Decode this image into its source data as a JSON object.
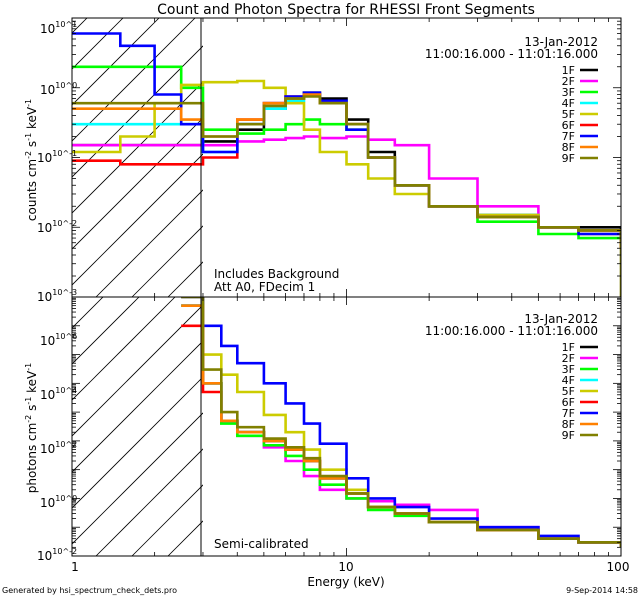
{
  "title": "Count and Photon Spectra for RHESSI Front Segments",
  "footer": {
    "left": "Generated by hsi_spectrum_check_dets.pro",
    "right": "9-Sep-2014 14:58"
  },
  "date_label": "13-Jan-2012",
  "time_range": "11:00:16.000 - 11:01:16.000",
  "series_names": [
    "1F",
    "2F",
    "3F",
    "4F",
    "5F",
    "6F",
    "7F",
    "8F",
    "9F"
  ],
  "series_colors": [
    "#000000",
    "#ff00ff",
    "#00ff00",
    "#00ffff",
    "#cccc00",
    "#ff0000",
    "#0000ff",
    "#ff8000",
    "#808000"
  ],
  "chart_data": [
    {
      "type": "line",
      "panel": "top",
      "xlabel": "",
      "ylabel": "counts cm^-2 s^-1 keV^-1",
      "xscale": "log",
      "yscale": "log",
      "xlim": [
        1,
        100
      ],
      "ylim": [
        0.001,
        10
      ],
      "xtick_labels": [],
      "ytick_labels": [
        "10^1",
        "10^0",
        "10^-1",
        "10^-2",
        "10^-3"
      ],
      "annotations": [
        "Includes Background",
        "Att A0, FDecim 1"
      ],
      "shaded_region": {
        "x_from": 1,
        "x_to": 3,
        "pattern": "hatched"
      },
      "series": [
        {
          "name": "1F",
          "x": [
            1,
            1.5,
            2,
            2.5,
            3,
            4,
            5,
            6,
            7,
            8,
            10,
            12,
            15,
            20,
            30,
            50,
            70,
            100
          ],
          "values": [
            0.15,
            0.15,
            0.15,
            0.15,
            0.17,
            0.25,
            0.5,
            0.7,
            0.85,
            0.7,
            0.35,
            0.12,
            0.04,
            0.02,
            0.015,
            0.01,
            0.01,
            0.005
          ]
        },
        {
          "name": "2F",
          "x": [
            1,
            1.5,
            2,
            2.5,
            3,
            4,
            5,
            6,
            7,
            8,
            10,
            12,
            15,
            20,
            30,
            50,
            70,
            100
          ],
          "values": [
            0.15,
            0.15,
            0.15,
            0.15,
            0.15,
            0.17,
            0.18,
            0.19,
            0.2,
            0.19,
            0.2,
            0.18,
            0.15,
            0.05,
            0.02,
            0.01,
            0.008,
            0.005
          ]
        },
        {
          "name": "3F",
          "x": [
            1,
            1.5,
            2,
            2.5,
            3,
            4,
            5,
            6,
            7,
            8,
            10,
            12,
            15,
            20,
            30,
            50,
            70,
            100
          ],
          "values": [
            2,
            2,
            2,
            1,
            0.25,
            0.22,
            0.25,
            0.3,
            0.35,
            0.3,
            0.25,
            0.1,
            0.04,
            0.02,
            0.012,
            0.008,
            0.007,
            0.005
          ]
        },
        {
          "name": "4F",
          "x": [
            1,
            1.5,
            2,
            2.5,
            3,
            4,
            5,
            6,
            7,
            8,
            10,
            12,
            15,
            20,
            30,
            50,
            70,
            100
          ],
          "values": [
            0.3,
            0.3,
            0.3,
            0.3,
            0.12,
            0.3,
            0.5,
            0.65,
            0.8,
            0.65,
            0.3,
            0.1,
            0.04,
            0.02,
            0.015,
            0.01,
            0.009,
            0.005
          ]
        },
        {
          "name": "5F",
          "x": [
            1,
            1.5,
            2,
            2.5,
            3,
            4,
            5,
            6,
            7,
            8,
            10,
            12,
            15,
            20,
            30,
            50,
            70,
            100
          ],
          "values": [
            0.12,
            0.2,
            0.6,
            1.1,
            1.2,
            1.25,
            1.0,
            0.6,
            0.25,
            0.12,
            0.08,
            0.05,
            0.03,
            0.02,
            0.015,
            0.01,
            0.008,
            0.005
          ]
        },
        {
          "name": "6F",
          "x": [
            1,
            1.5,
            2,
            2.5,
            3,
            4,
            5,
            6,
            7,
            8,
            10,
            12,
            15,
            20,
            30,
            50,
            70,
            100
          ],
          "values": [
            0.09,
            0.08,
            0.08,
            0.08,
            0.1,
            0.35,
            0.6,
            0.75,
            0.8,
            0.6,
            0.3,
            0.1,
            0.04,
            0.02,
            0.014,
            0.01,
            0.009,
            0.005
          ]
        },
        {
          "name": "7F",
          "x": [
            1,
            1.5,
            2,
            2.5,
            3,
            4,
            5,
            6,
            7,
            8,
            10,
            12,
            15,
            20,
            30,
            50,
            70,
            100
          ],
          "values": [
            6,
            4,
            0.8,
            0.3,
            0.12,
            0.3,
            0.6,
            0.75,
            0.85,
            0.65,
            0.25,
            0.1,
            0.04,
            0.02,
            0.014,
            0.01,
            0.008,
            0.006
          ]
        },
        {
          "name": "8F",
          "x": [
            1,
            1.5,
            2,
            2.5,
            3,
            4,
            5,
            6,
            7,
            8,
            10,
            12,
            15,
            20,
            30,
            50,
            70,
            100
          ],
          "values": [
            0.5,
            0.5,
            0.5,
            0.35,
            0.2,
            0.35,
            0.6,
            0.7,
            0.8,
            0.6,
            0.3,
            0.1,
            0.04,
            0.02,
            0.014,
            0.01,
            0.009,
            0.005
          ]
        },
        {
          "name": "9F",
          "x": [
            1,
            1.5,
            2,
            2.5,
            3,
            4,
            5,
            6,
            7,
            8,
            10,
            12,
            15,
            20,
            30,
            50,
            70,
            100
          ],
          "values": [
            0.6,
            0.6,
            0.6,
            0.6,
            0.2,
            0.3,
            0.55,
            0.7,
            0.75,
            0.6,
            0.3,
            0.1,
            0.04,
            0.02,
            0.014,
            0.01,
            0.009,
            0.001
          ]
        }
      ]
    },
    {
      "type": "line",
      "panel": "bottom",
      "xlabel": "Energy (keV)",
      "ylabel": "photons cm^-2 s^-1 keV^-1",
      "xscale": "log",
      "yscale": "log",
      "xlim": [
        1,
        100
      ],
      "ylim": [
        0.01,
        10000000
      ],
      "xtick_labels": [
        "1",
        "10",
        "100"
      ],
      "ytick_labels": [
        "10^6",
        "10^4",
        "10^2",
        "10^0",
        "10^-2"
      ],
      "annotations": [
        "Semi-calibrated"
      ],
      "shaded_region": {
        "x_from": 1,
        "x_to": 3,
        "pattern": "hatched"
      },
      "series": [
        {
          "name": "1F",
          "x": [
            2.5,
            3,
            3.5,
            4,
            5,
            6,
            7,
            8,
            10,
            12,
            15,
            20,
            30,
            50,
            70,
            100
          ],
          "values": [
            5000000,
            10000,
            500,
            200,
            100,
            50,
            20,
            5,
            1.5,
            0.5,
            0.3,
            0.15,
            0.08,
            0.04,
            0.03,
            0.02
          ]
        },
        {
          "name": "2F",
          "x": [
            2.5,
            3,
            3.5,
            4,
            5,
            6,
            7,
            8,
            10,
            12,
            15,
            20,
            30,
            50,
            70,
            100
          ],
          "values": [
            5000000,
            10000,
            500,
            150,
            60,
            20,
            6,
            2,
            1,
            0.8,
            0.6,
            0.4,
            0.1,
            0.04,
            0.03,
            0.02
          ]
        },
        {
          "name": "3F",
          "x": [
            2.5,
            3,
            3.5,
            4,
            5,
            6,
            7,
            8,
            10,
            12,
            15,
            20,
            30,
            50,
            70,
            100
          ],
          "values": [
            5000000,
            10000,
            400,
            150,
            70,
            30,
            10,
            3,
            1,
            0.4,
            0.25,
            0.15,
            0.08,
            0.04,
            0.03,
            0.02
          ]
        },
        {
          "name": "4F",
          "x": [
            2.5,
            3,
            3.5,
            4,
            5,
            6,
            7,
            8,
            10,
            12,
            15,
            20,
            30,
            50,
            70,
            100
          ],
          "values": [
            5000000,
            10000,
            500,
            200,
            100,
            50,
            20,
            5,
            1.5,
            0.5,
            0.3,
            0.15,
            0.08,
            0.04,
            0.03,
            0.02
          ]
        },
        {
          "name": "5F",
          "x": [
            2.5,
            3,
            3.5,
            4,
            5,
            6,
            7,
            8,
            10,
            12,
            15,
            20,
            30,
            50,
            70,
            100
          ],
          "values": [
            10000000,
            100000,
            20000,
            5000,
            800,
            200,
            50,
            10,
            2,
            0.5,
            0.3,
            0.15,
            0.08,
            0.04,
            0.03,
            0.02
          ]
        },
        {
          "name": "6F",
          "x": [
            2.5,
            3,
            3.5,
            4,
            5,
            6,
            7,
            8,
            10,
            12,
            15,
            20,
            30,
            50,
            70,
            100
          ],
          "values": [
            1000000,
            5000,
            500,
            200,
            100,
            50,
            20,
            5,
            1.5,
            0.5,
            0.3,
            0.15,
            0.08,
            0.04,
            0.03,
            0.02
          ]
        },
        {
          "name": "7F",
          "x": [
            2.5,
            3,
            3.5,
            4,
            5,
            6,
            7,
            8,
            10,
            12,
            15,
            20,
            30,
            50,
            70,
            100
          ],
          "values": [
            10000000,
            1000000,
            200000,
            50000,
            10000,
            2000,
            400,
            80,
            5,
            1,
            0.5,
            0.2,
            0.1,
            0.05,
            0.03,
            0.02
          ]
        },
        {
          "name": "8F",
          "x": [
            2.5,
            3,
            3.5,
            4,
            5,
            6,
            7,
            8,
            10,
            12,
            15,
            20,
            30,
            50,
            70,
            100
          ],
          "values": [
            5000000,
            10000,
            500,
            200,
            100,
            50,
            20,
            5,
            1.5,
            0.5,
            0.3,
            0.15,
            0.08,
            0.04,
            0.03,
            0.02
          ]
        },
        {
          "name": "9F",
          "x": [
            2.5,
            3,
            3.5,
            4,
            5,
            6,
            7,
            8,
            10,
            12,
            15,
            20,
            30,
            50,
            70,
            100
          ],
          "values": [
            10000000,
            30000,
            1000,
            300,
            120,
            60,
            25,
            6,
            1.5,
            0.5,
            0.3,
            0.15,
            0.08,
            0.04,
            0.03,
            0.02
          ]
        }
      ]
    }
  ]
}
